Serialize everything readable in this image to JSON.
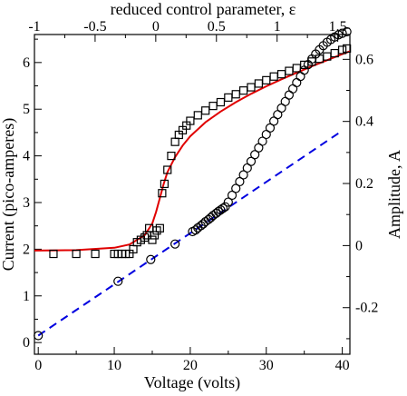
{
  "chart_data": {
    "type": "scatter",
    "xlabel": "Voltage (volts)",
    "ylabel": "Current (pico-amperes)",
    "top_xlabel": "reduced control parameter, ε",
    "right_ylabel": "Amplitude, A",
    "xlim": [
      -0.5,
      41
    ],
    "ylim": [
      -0.25,
      6.6
    ],
    "top_xlim": [
      -1,
      1.6
    ],
    "right_ylim": [
      -0.35,
      0.68
    ],
    "x_ticks": [
      "0",
      "10",
      "20",
      "30",
      "40"
    ],
    "x_tick_values": [
      0,
      10,
      20,
      30,
      40
    ],
    "y_ticks": [
      "0",
      "1",
      "2",
      "3",
      "4",
      "5",
      "6"
    ],
    "y_tick_values": [
      0,
      1,
      2,
      3,
      4,
      5,
      6
    ],
    "top_ticks": [
      "-1",
      "-0.5",
      "0",
      "0.5",
      "1",
      "1.5"
    ],
    "top_tick_values": [
      -1,
      -0.5,
      0,
      0.5,
      1,
      1.5
    ],
    "right_ticks": [
      "-0.2",
      "0",
      "0.2",
      "0.4",
      "0.6"
    ],
    "right_tick_values": [
      -0.2,
      0,
      0.2,
      0.4,
      0.6
    ],
    "grid": false,
    "legend": "none",
    "colors": {
      "fit_curve": "#e00000",
      "linear_fit": "#0000e0",
      "markers": "#000000"
    },
    "series": [
      {
        "marker": "square",
        "axis": "left",
        "x": [
          2,
          5,
          7.5,
          10,
          10.5,
          11,
          11.5,
          12,
          12.5,
          13,
          13.5,
          14,
          14.3,
          14.6,
          15,
          15.3,
          15.6,
          16,
          16.3,
          16.6,
          17,
          17.5,
          18,
          18.5,
          19,
          19.5,
          20,
          21,
          22,
          23,
          24,
          25,
          26,
          27,
          28,
          29,
          30,
          31,
          32,
          33,
          34,
          35,
          36,
          37,
          38,
          39,
          40,
          40.6
        ],
        "y": [
          1.9,
          1.9,
          1.9,
          1.9,
          1.9,
          1.9,
          1.9,
          1.9,
          2.0,
          2.15,
          2.2,
          2.25,
          2.3,
          2.45,
          2.2,
          2.3,
          2.4,
          2.45,
          3.2,
          3.4,
          3.7,
          4.0,
          4.3,
          4.45,
          4.55,
          4.65,
          4.75,
          4.87,
          4.97,
          5.07,
          5.15,
          5.25,
          5.32,
          5.4,
          5.47,
          5.55,
          5.62,
          5.7,
          5.75,
          5.82,
          5.88,
          5.95,
          6.02,
          6.08,
          6.13,
          6.2,
          6.27,
          6.3
        ]
      },
      {
        "marker": "circle",
        "axis": "right",
        "x": [
          0,
          10.5,
          14.8,
          18,
          20.3,
          20.7,
          21,
          21.4,
          21.7,
          22,
          22.4,
          22.7,
          23,
          23.4,
          23.7,
          24,
          24.3,
          24.6,
          25,
          25.5,
          26,
          26.5,
          27,
          27.5,
          28,
          28.5,
          29,
          29.5,
          30,
          30.5,
          31,
          31.5,
          32,
          32.5,
          33,
          33.5,
          34,
          34.5,
          35,
          35.5,
          36,
          36.5,
          37,
          37.5,
          38,
          38.5,
          39,
          39.5,
          40,
          40.6
        ],
        "y": [
          -0.29,
          -0.115,
          -0.045,
          0.005,
          0.045,
          0.05,
          0.057,
          0.064,
          0.07,
          0.077,
          0.084,
          0.09,
          0.097,
          0.104,
          0.11,
          0.115,
          0.12,
          0.125,
          0.14,
          0.162,
          0.184,
          0.206,
          0.228,
          0.25,
          0.271,
          0.293,
          0.315,
          0.336,
          0.358,
          0.379,
          0.401,
          0.422,
          0.443,
          0.464,
          0.485,
          0.505,
          0.525,
          0.545,
          0.565,
          0.583,
          0.601,
          0.617,
          0.631,
          0.644,
          0.655,
          0.664,
          0.672,
          0.679,
          0.684,
          0.689
        ]
      },
      {
        "name": "",
        "type": "line",
        "style": "solid",
        "axis": "left",
        "x": [
          -0.5,
          5,
          10,
          12,
          14,
          15,
          15.5,
          16,
          16.5,
          17,
          18,
          19,
          20,
          22,
          24,
          26,
          28,
          30,
          32,
          34,
          36,
          38,
          40,
          41
        ],
        "y": [
          1.97,
          1.98,
          2.03,
          2.1,
          2.3,
          2.55,
          2.8,
          3.1,
          3.4,
          3.65,
          3.97,
          4.22,
          4.42,
          4.72,
          4.95,
          5.15,
          5.33,
          5.49,
          5.64,
          5.78,
          5.92,
          6.05,
          6.18,
          6.24
        ]
      },
      {
        "name": "",
        "type": "line",
        "style": "dashed",
        "axis": "right",
        "x": [
          0,
          40
        ],
        "y": [
          -0.29,
          0.37
        ]
      }
    ]
  }
}
